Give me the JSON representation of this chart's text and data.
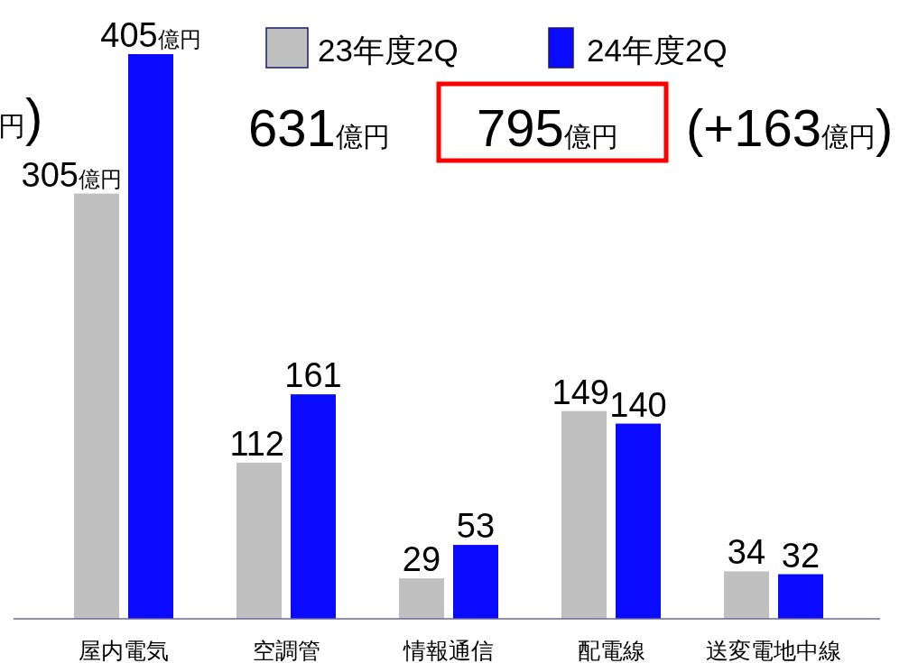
{
  "chart_data": {
    "type": "bar",
    "categories": [
      "屋内電気",
      "空調管",
      "情報通信",
      "配電線",
      "送変電地中線"
    ],
    "series": [
      {
        "name": "23年度2Q",
        "color": "#c0c0c0",
        "values": [
          305,
          112,
          29,
          149,
          34
        ],
        "value_labels": [
          "305億円",
          "112",
          "29",
          "149",
          "34"
        ]
      },
      {
        "name": "24年度2Q",
        "color": "#0a0aff",
        "values": [
          405,
          161,
          53,
          140,
          32
        ],
        "value_labels": [
          "405億円",
          "161",
          "53",
          "140",
          "32"
        ]
      }
    ],
    "annotations": [
      "円)",
      "631億円",
      "795億円",
      "(+163億円)"
    ],
    "legend": "top",
    "grid": false
  }
}
